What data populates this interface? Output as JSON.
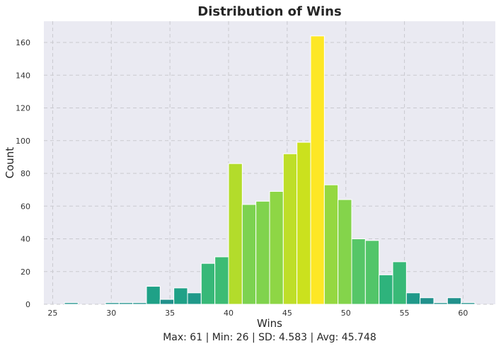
{
  "chart_data": {
    "type": "bar",
    "title": "Distribution of Wins",
    "xlabel": "Wins",
    "ylabel": "Count",
    "summary": "Max: 61 | Min: 26 | SD: 4.583 | Avg: 45.748",
    "xlim": [
      24.25,
      62.75
    ],
    "ylim": [
      0,
      173
    ],
    "xticks": [
      25,
      30,
      35,
      40,
      45,
      50,
      55,
      60
    ],
    "yticks": [
      0,
      20,
      40,
      60,
      80,
      100,
      120,
      140,
      160
    ],
    "grid": true,
    "bin_width": 1.1667,
    "bins": [
      {
        "start": 26.0,
        "count": 1,
        "color": "#21918c"
      },
      {
        "start": 27.167,
        "count": 0,
        "color": "#21918c"
      },
      {
        "start": 28.333,
        "count": 0,
        "color": "#21918c"
      },
      {
        "start": 29.5,
        "count": 1,
        "color": "#21918c"
      },
      {
        "start": 30.667,
        "count": 1,
        "color": "#21918c"
      },
      {
        "start": 31.833,
        "count": 1,
        "color": "#21918c"
      },
      {
        "start": 33.0,
        "count": 11,
        "color": "#1fa187"
      },
      {
        "start": 34.167,
        "count": 3,
        "color": "#21918c"
      },
      {
        "start": 35.333,
        "count": 10,
        "color": "#1fa187"
      },
      {
        "start": 36.5,
        "count": 7,
        "color": "#20998a"
      },
      {
        "start": 37.667,
        "count": 25,
        "color": "#37b878"
      },
      {
        "start": 38.833,
        "count": 29,
        "color": "#3dbc74"
      },
      {
        "start": 40.0,
        "count": 86,
        "color": "#b3dc2b"
      },
      {
        "start": 41.167,
        "count": 61,
        "color": "#7cd250"
      },
      {
        "start": 42.333,
        "count": 63,
        "color": "#80d34d"
      },
      {
        "start": 43.5,
        "count": 69,
        "color": "#8ed645"
      },
      {
        "start": 44.667,
        "count": 92,
        "color": "#bede28"
      },
      {
        "start": 45.833,
        "count": 99,
        "color": "#cbe11e"
      },
      {
        "start": 47.0,
        "count": 164,
        "color": "#fde725"
      },
      {
        "start": 48.167,
        "count": 73,
        "color": "#95d840"
      },
      {
        "start": 49.333,
        "count": 64,
        "color": "#84d44b"
      },
      {
        "start": 50.5,
        "count": 40,
        "color": "#56c667"
      },
      {
        "start": 51.667,
        "count": 39,
        "color": "#52c569"
      },
      {
        "start": 52.833,
        "count": 18,
        "color": "#2eb37c"
      },
      {
        "start": 54.0,
        "count": 26,
        "color": "#38b977"
      },
      {
        "start": 55.167,
        "count": 7,
        "color": "#20998a"
      },
      {
        "start": 56.333,
        "count": 4,
        "color": "#21918c"
      },
      {
        "start": 57.5,
        "count": 1,
        "color": "#21918c"
      },
      {
        "start": 58.667,
        "count": 4,
        "color": "#21918c"
      },
      {
        "start": 59.833,
        "count": 1,
        "color": "#21918c"
      }
    ]
  }
}
